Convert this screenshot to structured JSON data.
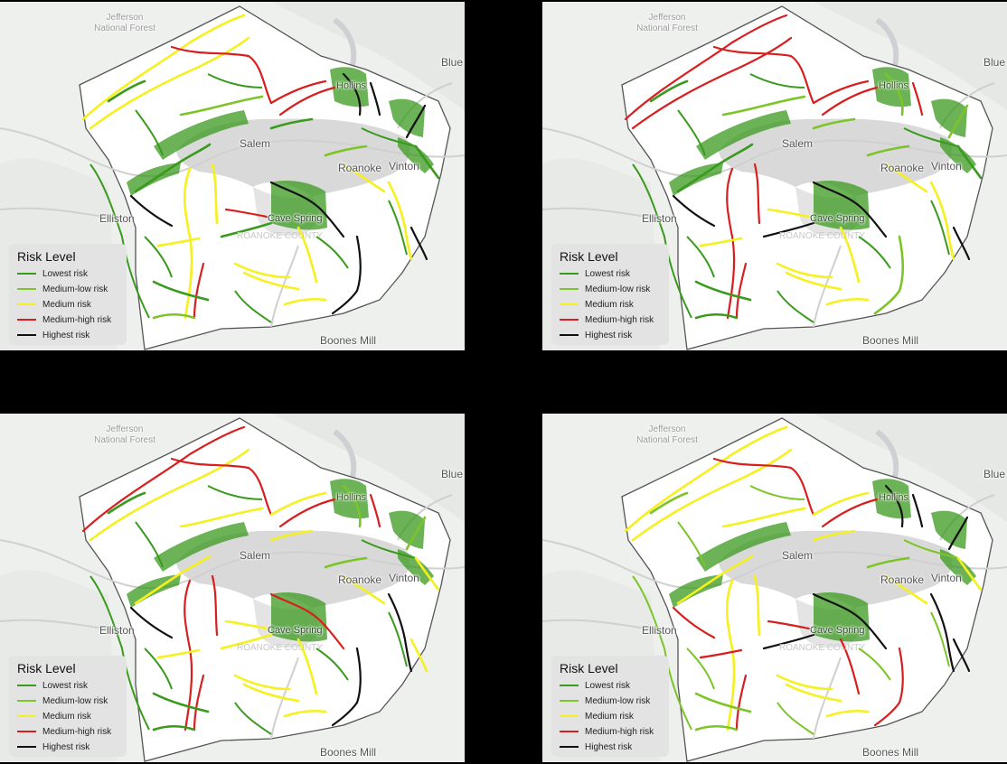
{
  "panels": [
    {
      "id": "panel-0",
      "scenario": 0
    },
    {
      "id": "panel-1",
      "scenario": 1
    },
    {
      "id": "panel-2",
      "scenario": 2
    },
    {
      "id": "panel-3",
      "scenario": 3
    }
  ],
  "places": {
    "jefferson_forest": "Jefferson National Forest",
    "blue_ridge": "Blue",
    "salem": "Salem",
    "roanoke": "Roanoke",
    "vinton": "Vinton",
    "hollins": "Hollins",
    "elliston": "Elliston",
    "cave_spring": "Cave Spring",
    "boones_mill": "Boones Mill",
    "county_label": "ROANOKE COUNTY"
  },
  "legend": {
    "title": "Risk Level",
    "items": [
      {
        "label": "Lowest risk",
        "color": "#3a9a1e"
      },
      {
        "label": "Medium-low risk",
        "color": "#7cc428"
      },
      {
        "label": "Medium risk",
        "color": "#f5f01e"
      },
      {
        "label": "Medium-high risk",
        "color": "#d81e1e"
      },
      {
        "label": "Highest risk",
        "color": "#111111"
      }
    ]
  },
  "colors": {
    "background": "#000000",
    "map_base": "#eef0ee",
    "county_fill": "#ffffff",
    "urban_fill": "#d9d9d9",
    "boundary": "#555555"
  }
}
